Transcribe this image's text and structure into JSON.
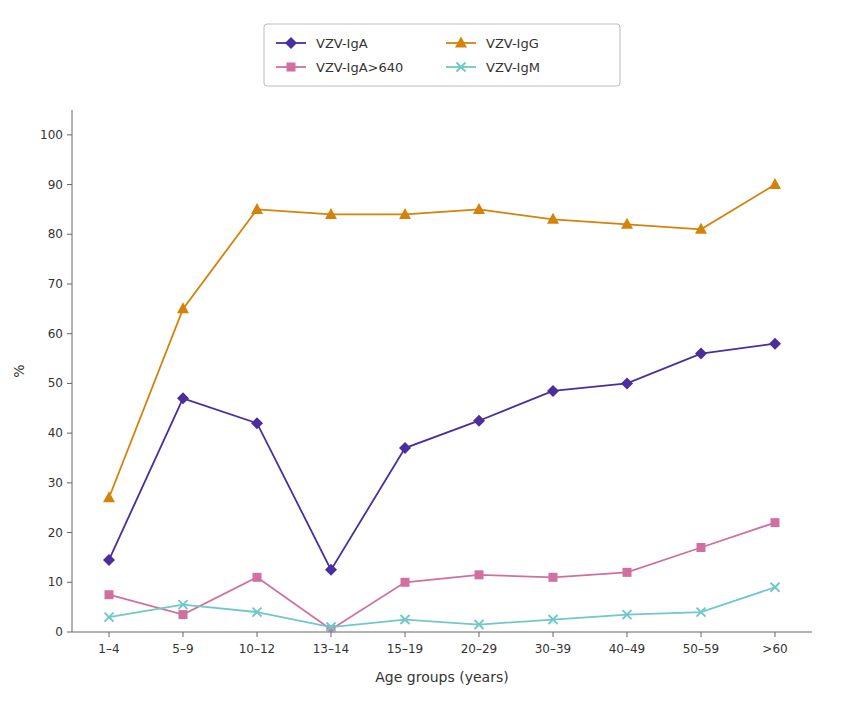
{
  "chart_data": {
    "type": "line",
    "categories": [
      "1–4",
      "5–9",
      "10–12",
      "13–14",
      "15–19",
      "20–29",
      "30–39",
      "40–49",
      "50–59",
      ">60"
    ],
    "series": [
      {
        "name": "VZV-IgA",
        "color": "#4b2e9e",
        "marker": "diamond",
        "values": [
          14.5,
          47,
          42,
          12.5,
          37,
          42.5,
          48.5,
          50,
          56,
          58
        ]
      },
      {
        "name": "VZV-IgG",
        "color": "#d4820a",
        "marker": "triangle",
        "values": [
          27,
          65,
          85,
          84,
          84,
          85,
          83,
          82,
          81,
          90
        ]
      },
      {
        "name": "VZV-IgA>640",
        "color": "#d070a0",
        "marker": "square",
        "values": [
          7.5,
          3.5,
          11,
          0.5,
          10,
          11.5,
          11,
          12,
          17,
          22
        ]
      },
      {
        "name": "VZV-IgM",
        "color": "#70c8c8",
        "marker": "x",
        "values": [
          3,
          5.5,
          4,
          1,
          2.5,
          1.5,
          2.5,
          3.5,
          4,
          9
        ]
      }
    ],
    "xlabel": "Age groups (years)",
    "ylabel": "%",
    "ylim": [
      0,
      105
    ],
    "yticks": [
      0,
      10,
      20,
      30,
      40,
      50,
      60,
      70,
      80,
      90,
      100
    ],
    "grid": false,
    "legend": "top"
  }
}
